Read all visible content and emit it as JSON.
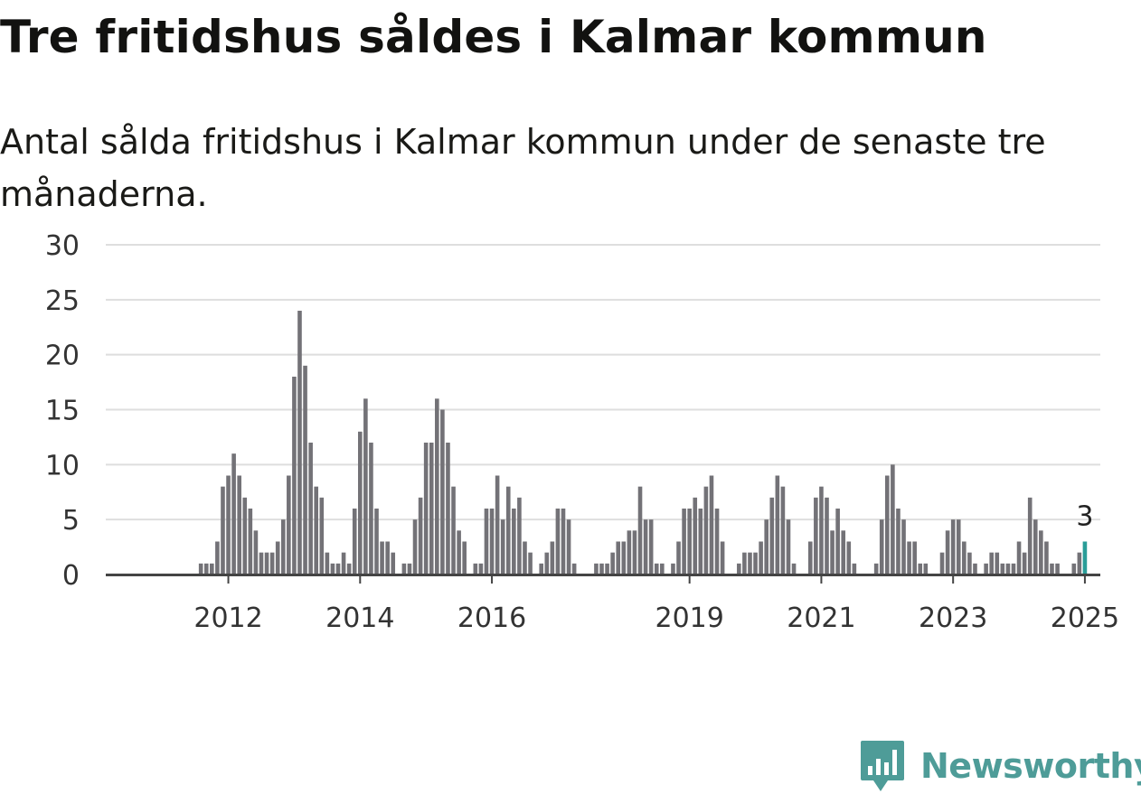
{
  "title": "Tre fritidshus såldes i Kalmar kommun",
  "subtitle": "Antal sålda fritidshus i Kalmar kommun under de senaste tre månaderna.",
  "brand": "Newsworthy",
  "colors": {
    "bar": "#737277",
    "highlight": "#2a9d98",
    "grid": "#dedede",
    "axis": "#444444",
    "brand": "#4e9c98"
  },
  "chart_data": {
    "type": "bar",
    "x_start": "2011-01",
    "x_end": "2025-06",
    "values": [
      0,
      0,
      0,
      0,
      0,
      0,
      0,
      0,
      0,
      0,
      0,
      0,
      1,
      1,
      1,
      3,
      8,
      9,
      11,
      9,
      7,
      6,
      4,
      2,
      2,
      2,
      3,
      5,
      9,
      18,
      24,
      19,
      12,
      8,
      7,
      2,
      1,
      1,
      2,
      1,
      6,
      13,
      16,
      12,
      6,
      3,
      3,
      2,
      0,
      1,
      1,
      5,
      7,
      12,
      12,
      16,
      15,
      12,
      8,
      4,
      3,
      0,
      1,
      1,
      6,
      6,
      9,
      5,
      8,
      6,
      7,
      3,
      2,
      0,
      1,
      2,
      3,
      6,
      6,
      5,
      1,
      0,
      0,
      0,
      1,
      1,
      1,
      2,
      3,
      3,
      4,
      4,
      8,
      5,
      5,
      1,
      1,
      0,
      1,
      3,
      6,
      6,
      7,
      6,
      8,
      9,
      6,
      3,
      0,
      0,
      1,
      2,
      2,
      2,
      3,
      5,
      7,
      9,
      8,
      5,
      1,
      0,
      0,
      3,
      7,
      8,
      7,
      4,
      6,
      4,
      3,
      1,
      0,
      0,
      0,
      1,
      5,
      9,
      10,
      6,
      5,
      3,
      3,
      1,
      1,
      0,
      0,
      2,
      4,
      5,
      5,
      3,
      2,
      1,
      0,
      1,
      2,
      2,
      1,
      1,
      1,
      3,
      2,
      7,
      5,
      4,
      3,
      1,
      1,
      0,
      0,
      1,
      2,
      3
    ],
    "highlight_label": "3",
    "ylim": [
      0,
      30
    ],
    "yticks": [
      0,
      5,
      10,
      15,
      20,
      25,
      30
    ],
    "xticks": [
      {
        "label": "2012",
        "date": "2012-06"
      },
      {
        "label": "2014",
        "date": "2014-06"
      },
      {
        "label": "2016",
        "date": "2016-06"
      },
      {
        "label": "2019",
        "date": "2019-06"
      },
      {
        "label": "2021",
        "date": "2021-06"
      },
      {
        "label": "2023",
        "date": "2023-06"
      },
      {
        "label": "2025",
        "date": "2025-06"
      }
    ],
    "xlabel": "",
    "ylabel": "",
    "grid": true,
    "legend": "none"
  }
}
